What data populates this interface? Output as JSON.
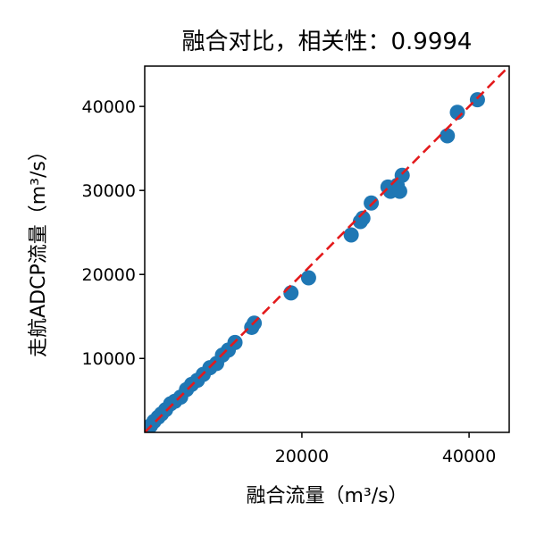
{
  "chart_data": {
    "type": "scatter",
    "title": "融合对比，相关性：0.9994",
    "xlabel": "融合流量（m³/s）",
    "ylabel": "走航ADCP流量（m³/s）",
    "xlim": [
      1200,
      44800
    ],
    "ylim": [
      1200,
      44800
    ],
    "xticks": [
      20000,
      40000
    ],
    "xtick_labels": [
      "20000",
      "40000"
    ],
    "yticks": [
      10000,
      20000,
      30000,
      40000
    ],
    "ytick_labels": [
      "10000",
      "20000",
      "30000",
      "40000"
    ],
    "grid": false,
    "legend": "none",
    "reference_line": {
      "style": "dashed",
      "color": "#e31a1c",
      "slope": 1,
      "intercept": 0
    },
    "point_color": "#1f77b4",
    "series": [
      {
        "x": [
          1500,
          1900,
          2300,
          2800,
          3200,
          3700,
          4300,
          4800,
          5500,
          6200,
          6800,
          7500,
          8200,
          9000,
          9800,
          10500,
          11200,
          12000,
          14000,
          14300,
          18700,
          20800,
          25900,
          27000,
          27300,
          28300,
          30300,
          30600,
          31400,
          31700,
          32000,
          37400,
          38600,
          41000
        ],
        "y": [
          1600,
          2000,
          2500,
          3000,
          3400,
          3900,
          4600,
          4900,
          5400,
          6300,
          6900,
          7400,
          8100,
          8900,
          9400,
          10400,
          11000,
          11900,
          13700,
          14200,
          17800,
          19600,
          24700,
          26300,
          26700,
          28500,
          30400,
          29900,
          30600,
          29900,
          31800,
          36500,
          39300,
          40800
        ]
      }
    ]
  }
}
